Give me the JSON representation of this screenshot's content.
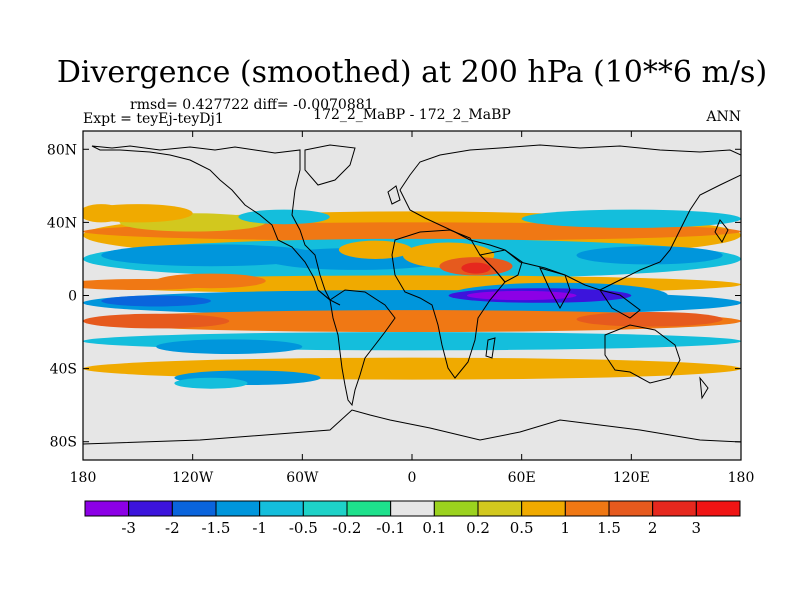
{
  "chart_data": {
    "type": "heatmap",
    "title": "Divergence (smoothed) at 200 hPa (10**6 m/s)",
    "stats": "rmsd= 0.427722 diff= -0.0070881",
    "expt": "Expt = teyEj-teyDj1",
    "case": "172_2_MaBP - 172_2_MaBP",
    "season": "ANN",
    "x_ticks": [
      {
        "value": -180,
        "label": "180"
      },
      {
        "value": -120,
        "label": "120W"
      },
      {
        "value": -60,
        "label": "60W"
      },
      {
        "value": 0,
        "label": "0"
      },
      {
        "value": 60,
        "label": "60E"
      },
      {
        "value": 120,
        "label": "120E"
      },
      {
        "value": 180,
        "label": "180"
      }
    ],
    "y_ticks": [
      {
        "value": 80,
        "label": "80N"
      },
      {
        "value": 40,
        "label": "40N"
      },
      {
        "value": 0,
        "label": "0"
      },
      {
        "value": -40,
        "label": "40S"
      },
      {
        "value": -80,
        "label": "80S"
      }
    ],
    "xlim": [
      -180,
      180
    ],
    "ylim": [
      -90,
      90
    ],
    "colorbar": {
      "labels": [
        "-3",
        "-2",
        "-1.5",
        "-1",
        "-0.5",
        "-0.2",
        "-0.1",
        "0.1",
        "0.2",
        "0.5",
        "1",
        "1.5",
        "2",
        "3"
      ],
      "colors": [
        "#8c00e6",
        "#3c14dc",
        "#0a64dc",
        "#0096dc",
        "#14bedc",
        "#1ed2c8",
        "#1ee18c",
        "#e6e6e6",
        "#9bd21e",
        "#d2c81e",
        "#f0aa00",
        "#f07814",
        "#e65a1e",
        "#e6281e",
        "#f01414"
      ]
    },
    "features": [
      {
        "lon": 0,
        "lat": 33,
        "rx": 180,
        "ry": 13,
        "level": "0.5"
      },
      {
        "lon": 0,
        "lat": 35,
        "rx": 180,
        "ry": 5,
        "level": "1"
      },
      {
        "lon": -120,
        "lat": 40,
        "rx": 40,
        "ry": 5,
        "level": "0.2"
      },
      {
        "lon": -150,
        "lat": 45,
        "rx": 30,
        "ry": 5,
        "level": "0.5"
      },
      {
        "lon": -70,
        "lat": 43,
        "rx": 25,
        "ry": 4,
        "level": "-0.5"
      },
      {
        "lon": 120,
        "lat": 42,
        "rx": 60,
        "ry": 5,
        "level": "-0.5"
      },
      {
        "lon": -170,
        "lat": 45,
        "rx": 12,
        "ry": 5,
        "level": "0.5"
      },
      {
        "lon": 0,
        "lat": 20,
        "rx": 180,
        "ry": 11,
        "level": "-0.5"
      },
      {
        "lon": -110,
        "lat": 22,
        "rx": 60,
        "ry": 6,
        "level": "-1"
      },
      {
        "lon": -30,
        "lat": 20,
        "rx": 50,
        "ry": 6,
        "level": "-1"
      },
      {
        "lon": 130,
        "lat": 22,
        "rx": 40,
        "ry": 5,
        "level": "-1"
      },
      {
        "lon": 20,
        "lat": 22,
        "rx": 25,
        "ry": 7,
        "level": "0.5"
      },
      {
        "lon": 35,
        "lat": 16,
        "rx": 20,
        "ry": 5,
        "level": "1.5"
      },
      {
        "lon": 35,
        "lat": 15,
        "rx": 8,
        "ry": 3,
        "level": "2"
      },
      {
        "lon": -20,
        "lat": 25,
        "rx": 20,
        "ry": 5,
        "level": "0.5"
      },
      {
        "lon": 0,
        "lat": 6,
        "rx": 180,
        "ry": 5,
        "level": "0.5"
      },
      {
        "lon": -150,
        "lat": 6,
        "rx": 40,
        "ry": 3,
        "level": "1"
      },
      {
        "lon": -110,
        "lat": 8,
        "rx": 30,
        "ry": 4,
        "level": "1"
      },
      {
        "lon": 0,
        "lat": -4,
        "rx": 180,
        "ry": 7,
        "level": "-1"
      },
      {
        "lon": 80,
        "lat": 0,
        "rx": 60,
        "ry": 7,
        "level": "-1"
      },
      {
        "lon": 70,
        "lat": 0,
        "rx": 50,
        "ry": 4,
        "level": "-2"
      },
      {
        "lon": 60,
        "lat": 0,
        "rx": 30,
        "ry": 2.5,
        "level": "-3"
      },
      {
        "lon": -140,
        "lat": -3,
        "rx": 30,
        "ry": 3,
        "level": "-1.5"
      },
      {
        "lon": 0,
        "lat": -14,
        "rx": 180,
        "ry": 6,
        "level": "1"
      },
      {
        "lon": -140,
        "lat": -14,
        "rx": 40,
        "ry": 4,
        "level": "1.5"
      },
      {
        "lon": 130,
        "lat": -13,
        "rx": 40,
        "ry": 4,
        "level": "1.5"
      },
      {
        "lon": 0,
        "lat": -25,
        "rx": 180,
        "ry": 5,
        "level": "-0.5"
      },
      {
        "lon": -100,
        "lat": -28,
        "rx": 40,
        "ry": 4,
        "level": "-1"
      },
      {
        "lon": 0,
        "lat": -40,
        "rx": 180,
        "ry": 6,
        "level": "0.5"
      },
      {
        "lon": -90,
        "lat": -45,
        "rx": 40,
        "ry": 4,
        "level": "-1"
      },
      {
        "lon": -110,
        "lat": -48,
        "rx": 20,
        "ry": 3,
        "level": "-0.5"
      }
    ]
  }
}
